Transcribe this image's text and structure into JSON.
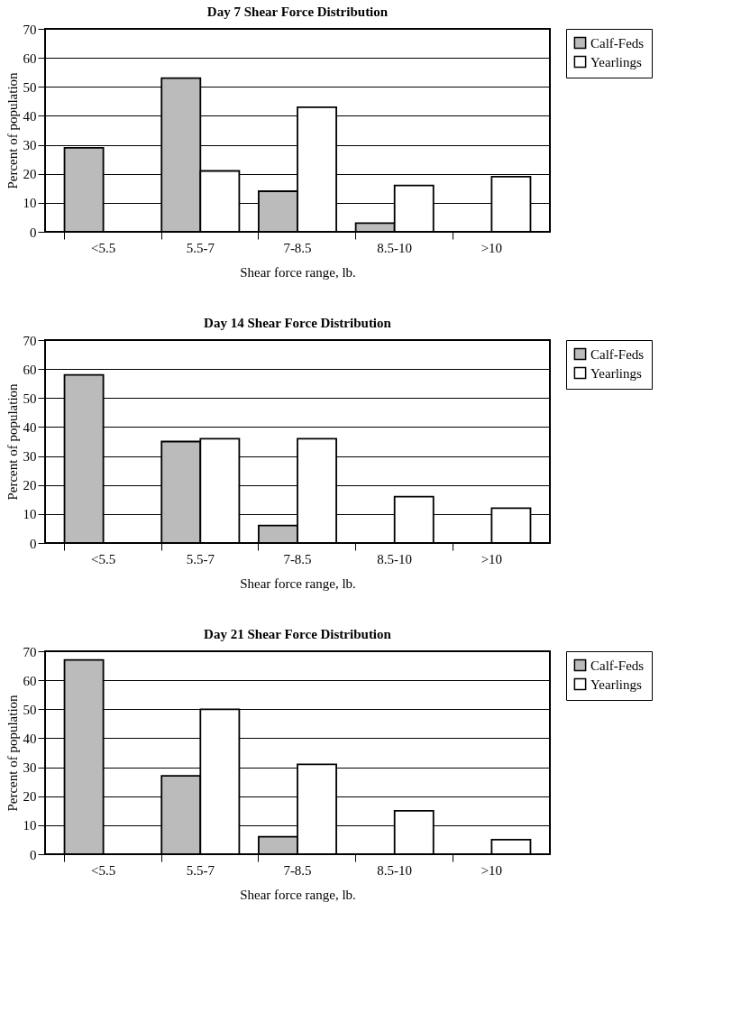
{
  "chart_data": [
    {
      "type": "bar",
      "title": "Day 7 Shear Force Distribution",
      "xlabel": "Shear force range, lb.",
      "ylabel": "Percent of population",
      "categories": [
        "<5.5",
        "5.5-7",
        "7-8.5",
        "8.5-10",
        ">10"
      ],
      "series": [
        {
          "name": "Calf-Feds",
          "color": "#bbbbbb",
          "values": [
            29,
            53,
            14,
            3,
            null
          ]
        },
        {
          "name": "Yearlings",
          "color": "#ffffff",
          "values": [
            null,
            21,
            43,
            16,
            19
          ]
        }
      ],
      "ylim": [
        0,
        70
      ],
      "yticks": [
        0,
        10,
        20,
        30,
        40,
        50,
        60,
        70
      ],
      "grid": "y",
      "legend": "right"
    },
    {
      "type": "bar",
      "title": "Day 14 Shear Force Distribution",
      "xlabel": "Shear force range, lb.",
      "ylabel": "Percent of population",
      "categories": [
        "<5.5",
        "5.5-7",
        "7-8.5",
        "8.5-10",
        ">10"
      ],
      "series": [
        {
          "name": "Calf-Feds",
          "color": "#bbbbbb",
          "values": [
            58,
            35,
            6,
            null,
            null
          ]
        },
        {
          "name": "Yearlings",
          "color": "#ffffff",
          "values": [
            null,
            36,
            36,
            16,
            12
          ]
        }
      ],
      "ylim": [
        0,
        70
      ],
      "yticks": [
        0,
        10,
        20,
        30,
        40,
        50,
        60,
        70
      ],
      "grid": "y",
      "legend": "right"
    },
    {
      "type": "bar",
      "title": "Day 21 Shear Force Distribution",
      "xlabel": "Shear force range, lb.",
      "ylabel": "Percent of population",
      "categories": [
        "<5.5",
        "5.5-7",
        "7-8.5",
        "8.5-10",
        ">10"
      ],
      "series": [
        {
          "name": "Calf-Feds",
          "color": "#bbbbbb",
          "values": [
            67,
            27,
            6,
            null,
            null
          ]
        },
        {
          "name": "Yearlings",
          "color": "#ffffff",
          "values": [
            null,
            50,
            31,
            15,
            5
          ]
        }
      ],
      "ylim": [
        0,
        70
      ],
      "yticks": [
        0,
        10,
        20,
        30,
        40,
        50,
        60,
        70
      ],
      "grid": "y",
      "legend": "right"
    }
  ]
}
